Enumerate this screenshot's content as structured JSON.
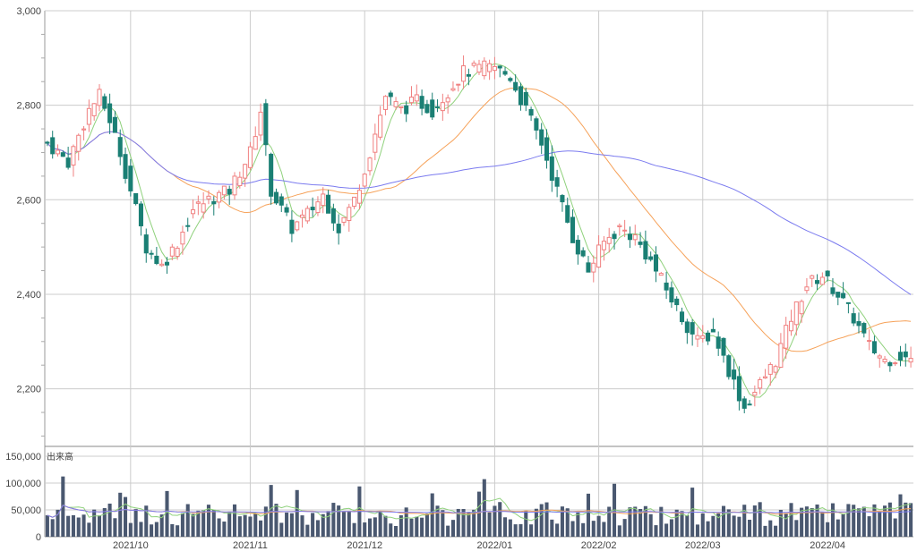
{
  "chart_data": {
    "type": "candlestick",
    "price_axis": {
      "ylim": [
        2080,
        3000
      ],
      "ticks": [
        "3,000",
        "2,800",
        "2,600",
        "2,400",
        "2,200"
      ],
      "tick_values": [
        3000,
        2800,
        2600,
        2400,
        2200
      ]
    },
    "volume_axis": {
      "label": "出来高",
      "ylim": [
        0,
        160000
      ],
      "ticks": [
        "150,000",
        "100,000",
        "50,000",
        "0"
      ],
      "tick_values": [
        150000,
        100000,
        50000,
        0
      ]
    },
    "x_ticks": [
      {
        "index": 16,
        "label": "2021/10"
      },
      {
        "index": 39,
        "label": "2021/11"
      },
      {
        "index": 61,
        "label": "2021/12"
      },
      {
        "index": 86,
        "label": "2022/01"
      },
      {
        "index": 106,
        "label": "2022/02"
      },
      {
        "index": 126,
        "label": "2022/03"
      },
      {
        "index": 150,
        "label": "2022/04"
      }
    ],
    "colors": {
      "up": "#f08080",
      "down": "#1a7f74",
      "ma_short": "#8fd17c",
      "ma_mid": "#f6a25a",
      "ma_long": "#7b7bef",
      "volume": "#4a5870",
      "grid": "#cccccc"
    },
    "ohlc": [],
    "volume": []
  }
}
